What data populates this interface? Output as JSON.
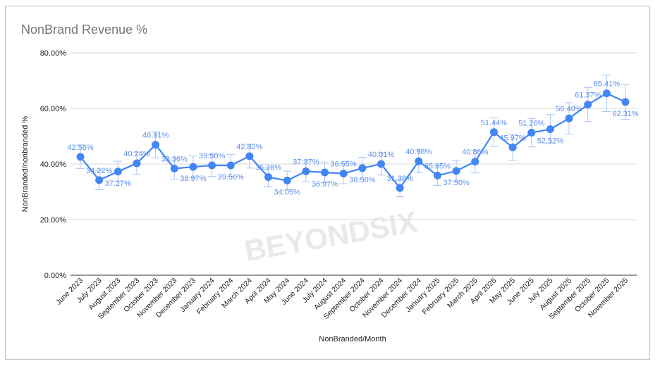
{
  "chart_data": {
    "type": "line",
    "title": "NonBrand Revenue %",
    "xlabel": "NonBranded/Month",
    "ylabel": "NonBranded/nonbranded %",
    "ylim": [
      0,
      80
    ],
    "yticks": [
      "0.00%",
      "20.00%",
      "40.00%",
      "60.00%",
      "80.00%"
    ],
    "grid": true,
    "error_bars": true,
    "color": "#4285f4",
    "watermark": "BEYONDSIX",
    "categories": [
      "June 2023",
      "July 2023",
      "August 2023",
      "September 2023",
      "October 2023",
      "November 2023",
      "December 2023",
      "January 2024",
      "February 2024",
      "March 2024",
      "April 2024",
      "May 2024",
      "June 2024",
      "July 2024",
      "August 2024",
      "September 2024",
      "October 2024",
      "November 2024",
      "December 2024",
      "January 2025",
      "February 2025",
      "March 2025",
      "April 2025",
      "May 2025",
      "June 2025",
      "July 2025",
      "August 2025",
      "September 2025",
      "October 2025",
      "November 2025"
    ],
    "values": [
      42.58,
      34.22,
      37.27,
      40.24,
      46.91,
      38.36,
      38.97,
      39.5,
      39.5,
      42.82,
      35.28,
      34.05,
      37.37,
      36.97,
      36.55,
      38.5,
      40.01,
      31.38,
      40.98,
      35.85,
      37.5,
      40.86,
      51.44,
      45.97,
      51.26,
      52.52,
      56.4,
      61.37,
      65.41,
      62.31
    ],
    "data_labels": [
      "42.58%",
      "34.22%",
      "37.27%",
      "40.24%",
      "46.91%",
      "38.36%",
      "38.97%",
      "39.50%",
      "39.50%",
      "42.82%",
      "35.28%",
      "34.05%",
      "37.37%",
      "36.97%",
      "36.55%",
      "38.50%",
      "40.01%",
      "31.38%",
      "40.98%",
      "35.85%",
      "37.50%",
      "40.86%",
      "51.44%",
      "45.97%",
      "51.26%",
      "52.52%",
      "56.40%",
      "61.37%",
      "65.41%",
      "62.31%"
    ]
  }
}
